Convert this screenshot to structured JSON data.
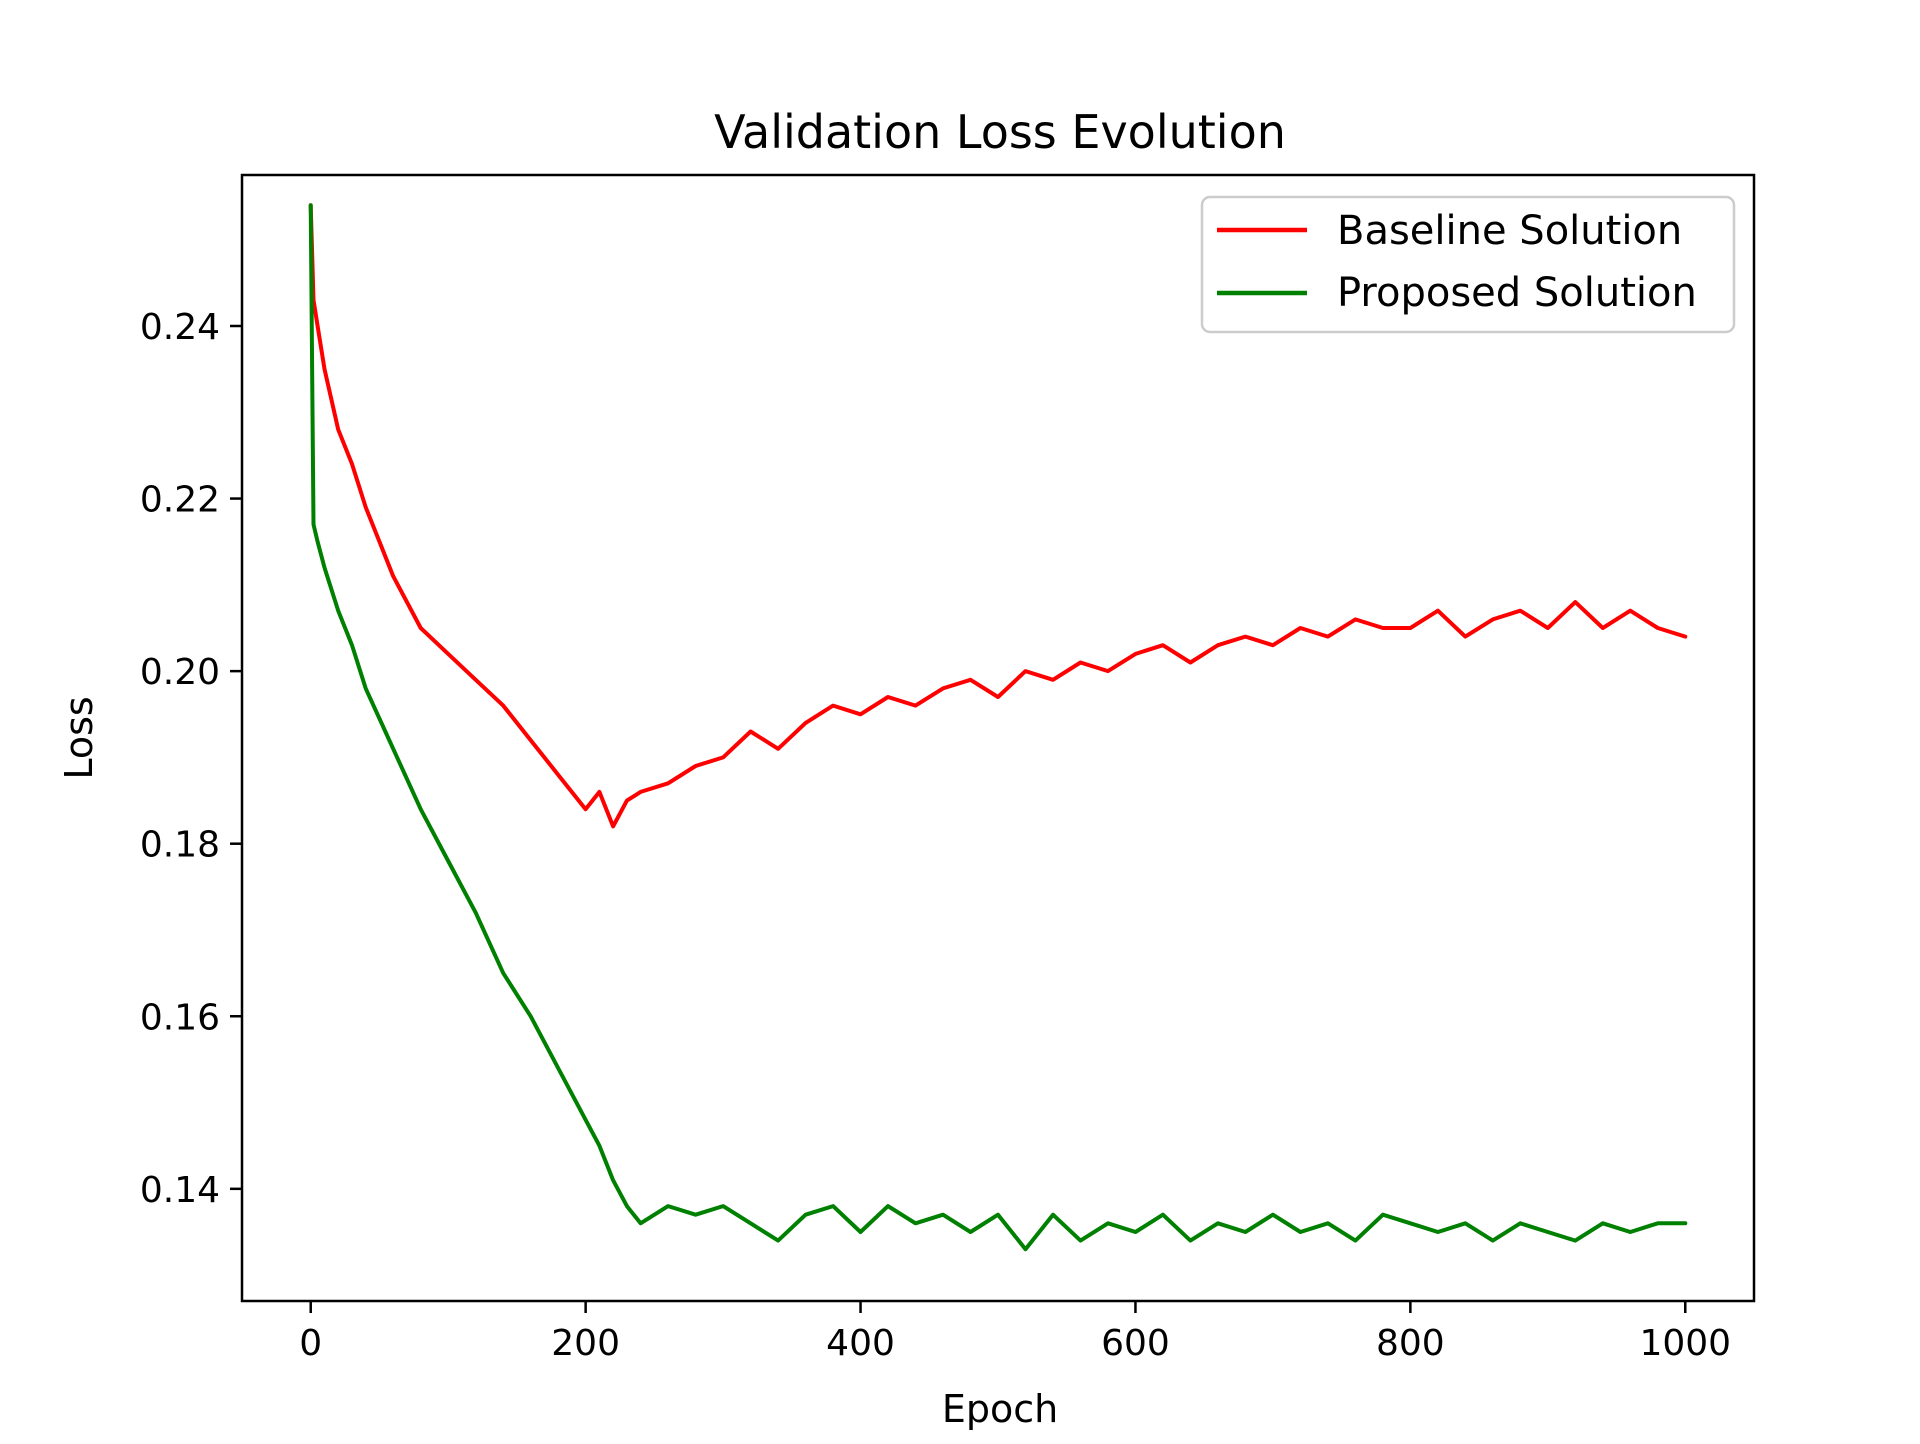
{
  "chart_data": {
    "type": "line",
    "title": "Validation Loss Evolution",
    "xlabel": "Epoch",
    "ylabel": "Loss",
    "xlim": [
      -50,
      1050
    ],
    "ylim": [
      0.127,
      0.2575
    ],
    "x_ticks": [
      0,
      200,
      400,
      600,
      800,
      1000
    ],
    "x_tick_labels": [
      "0",
      "200",
      "400",
      "600",
      "800",
      "1000"
    ],
    "y_ticks": [
      0.14,
      0.16,
      0.18,
      0.2,
      0.22,
      0.24
    ],
    "y_tick_labels": [
      "0.14",
      "0.16",
      "0.18",
      "0.20",
      "0.22",
      "0.24"
    ],
    "grid": false,
    "legend_position": "top-right",
    "x": [
      0,
      2,
      5,
      10,
      20,
      30,
      40,
      60,
      80,
      100,
      120,
      140,
      160,
      180,
      200,
      210,
      220,
      230,
      240,
      260,
      280,
      300,
      320,
      340,
      360,
      380,
      400,
      420,
      440,
      460,
      480,
      500,
      520,
      540,
      560,
      580,
      600,
      620,
      640,
      660,
      680,
      700,
      720,
      740,
      760,
      780,
      800,
      820,
      840,
      860,
      880,
      900,
      920,
      940,
      960,
      980,
      1000
    ],
    "series": [
      {
        "name": "Baseline Solution",
        "color": "#ff0000",
        "values": [
          0.254,
          0.243,
          0.24,
          0.235,
          0.228,
          0.224,
          0.219,
          0.211,
          0.205,
          0.202,
          0.199,
          0.196,
          0.192,
          0.188,
          0.184,
          0.186,
          0.182,
          0.185,
          0.186,
          0.187,
          0.189,
          0.19,
          0.193,
          0.191,
          0.194,
          0.196,
          0.195,
          0.197,
          0.196,
          0.198,
          0.199,
          0.197,
          0.2,
          0.199,
          0.201,
          0.2,
          0.202,
          0.203,
          0.201,
          0.203,
          0.204,
          0.203,
          0.205,
          0.204,
          0.206,
          0.205,
          0.205,
          0.207,
          0.204,
          0.206,
          0.207,
          0.205,
          0.208,
          0.205,
          0.207,
          0.205,
          0.204
        ]
      },
      {
        "name": "Proposed Solution",
        "color": "#008000",
        "values": [
          0.254,
          0.217,
          0.215,
          0.212,
          0.207,
          0.203,
          0.198,
          0.191,
          0.184,
          0.178,
          0.172,
          0.165,
          0.16,
          0.154,
          0.148,
          0.145,
          0.141,
          0.138,
          0.136,
          0.138,
          0.137,
          0.138,
          0.136,
          0.134,
          0.137,
          0.138,
          0.135,
          0.138,
          0.136,
          0.137,
          0.135,
          0.137,
          0.133,
          0.137,
          0.134,
          0.136,
          0.135,
          0.137,
          0.134,
          0.136,
          0.135,
          0.137,
          0.135,
          0.136,
          0.134,
          0.137,
          0.136,
          0.135,
          0.136,
          0.134,
          0.136,
          0.135,
          0.134,
          0.136,
          0.135,
          0.136,
          0.136
        ]
      }
    ]
  }
}
